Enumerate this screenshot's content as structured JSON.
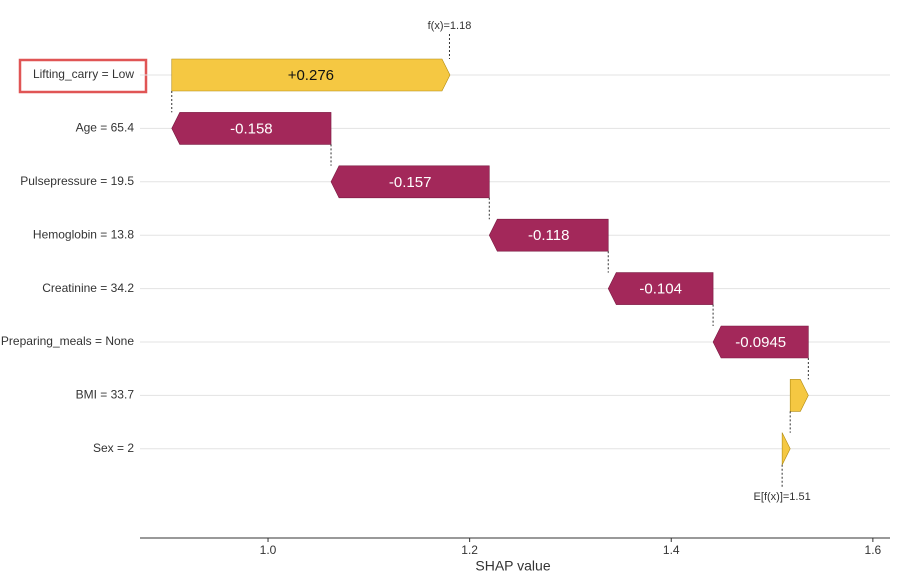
{
  "chart_data": {
    "type": "waterfall",
    "categories": [
      "Lifting_carry = Low",
      "Age = 65.4",
      "Pulsepressure = 19.5",
      "Hemoglobin = 13.8",
      "Creatinine = 34.2",
      "Preparing_meals = None",
      "BMI = 33.7",
      "Sex = 2"
    ],
    "values": [
      0.276,
      -0.158,
      -0.157,
      -0.118,
      -0.104,
      -0.0945,
      0.018,
      0.008
    ],
    "value_labels": [
      "+0.276",
      "-0.158",
      "-0.157",
      "-0.118",
      "-0.104",
      "-0.0945",
      null,
      null
    ],
    "base": 1.51,
    "base_label": "E[f(x)]=1.51",
    "fx": 1.18,
    "fx_label": "f(x)=1.18",
    "xlabel": "SHAP value",
    "xlim": [
      0.873,
      1.617
    ],
    "xticks": [
      {
        "value": 1,
        "label": "1.0"
      },
      1.2,
      1.4,
      1.6
    ],
    "positive_color": "#f5c842",
    "negative_color": "#a3285a",
    "grid": true
  }
}
